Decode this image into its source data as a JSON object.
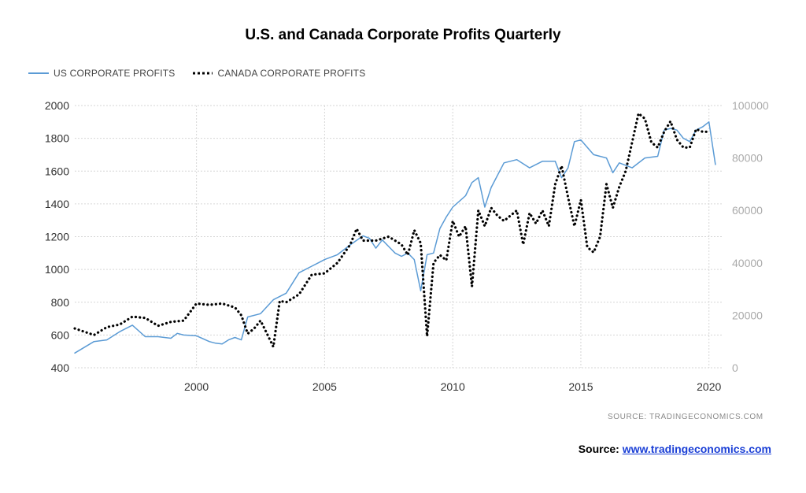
{
  "chart_data": {
    "type": "line",
    "title": "U.S. and Canada Corporate Profits Quarterly",
    "xlabel": "",
    "ylabel": "",
    "x_ticks": [
      "2000",
      "2005",
      "2010",
      "2015",
      "2020"
    ],
    "xlim": [
      1995.25,
      2020.5
    ],
    "y_left": {
      "lim": [
        400,
        2000
      ],
      "ticks": [
        "400",
        "600",
        "800",
        "1000",
        "1200",
        "1400",
        "1600",
        "1800",
        "2000"
      ]
    },
    "y_right": {
      "lim": [
        0,
        100000
      ],
      "ticks": [
        "0",
        "20000",
        "40000",
        "60000",
        "80000",
        "100000"
      ]
    },
    "grid": true,
    "legend_position": "top-left",
    "series": [
      {
        "name": "US CORPORATE PROFITS",
        "axis": "left",
        "color": "#5b9bd5",
        "style": "solid",
        "x": [
          1995.25,
          1996.0,
          1996.5,
          1997.0,
          1997.5,
          1998.0,
          1998.5,
          1999.0,
          1999.25,
          1999.5,
          2000.0,
          2000.5,
          2000.75,
          2001.0,
          2001.25,
          2001.5,
          2001.75,
          2002.0,
          2002.5,
          2003.0,
          2003.5,
          2004.0,
          2004.5,
          2004.75,
          2005.0,
          2005.5,
          2006.0,
          2006.5,
          2006.75,
          2007.0,
          2007.25,
          2007.5,
          2007.75,
          2008.0,
          2008.25,
          2008.5,
          2008.75,
          2009.0,
          2009.25,
          2009.5,
          2009.75,
          2010.0,
          2010.5,
          2010.75,
          2011.0,
          2011.25,
          2011.5,
          2012.0,
          2012.5,
          2013.0,
          2013.5,
          2014.0,
          2014.25,
          2014.5,
          2014.75,
          2015.0,
          2015.5,
          2016.0,
          2016.25,
          2016.5,
          2017.0,
          2017.5,
          2018.0,
          2018.25,
          2018.5,
          2018.75,
          2019.0,
          2019.25,
          2019.5,
          2019.75,
          2020.0,
          2020.25
        ],
        "y": [
          490,
          560,
          570,
          620,
          660,
          590,
          590,
          580,
          610,
          600,
          595,
          560,
          550,
          545,
          570,
          585,
          570,
          710,
          730,
          815,
          855,
          980,
          1020,
          1040,
          1060,
          1090,
          1150,
          1205,
          1190,
          1130,
          1180,
          1140,
          1100,
          1080,
          1100,
          1060,
          870,
          1090,
          1100,
          1250,
          1320,
          1380,
          1450,
          1530,
          1560,
          1380,
          1500,
          1650,
          1670,
          1620,
          1660,
          1660,
          1560,
          1620,
          1780,
          1790,
          1700,
          1680,
          1590,
          1650,
          1620,
          1680,
          1690,
          1850,
          1860,
          1850,
          1800,
          1780,
          1850,
          1870,
          1900,
          1640
        ]
      },
      {
        "name": "CANADA CORPORATE PROFITS",
        "axis": "right",
        "color": "#000000",
        "style": "dotted",
        "x": [
          1995.25,
          1996.0,
          1996.5,
          1997.0,
          1997.5,
          1998.0,
          1998.5,
          1999.0,
          1999.5,
          2000.0,
          2000.5,
          2001.0,
          2001.5,
          2001.75,
          2002.0,
          2002.25,
          2002.5,
          2002.75,
          2003.0,
          2003.25,
          2003.5,
          2004.0,
          2004.5,
          2005.0,
          2005.5,
          2006.0,
          2006.25,
          2006.5,
          2007.0,
          2007.5,
          2008.0,
          2008.25,
          2008.5,
          2008.75,
          2009.0,
          2009.25,
          2009.5,
          2009.75,
          2010.0,
          2010.25,
          2010.5,
          2010.75,
          2011.0,
          2011.25,
          2011.5,
          2011.75,
          2012.0,
          2012.5,
          2012.75,
          2013.0,
          2013.25,
          2013.5,
          2013.75,
          2014.0,
          2014.25,
          2014.5,
          2014.75,
          2015.0,
          2015.25,
          2015.5,
          2015.75,
          2016.0,
          2016.25,
          2016.5,
          2016.75,
          2017.0,
          2017.25,
          2017.5,
          2017.75,
          2018.0,
          2018.25,
          2018.5,
          2018.75,
          2019.0,
          2019.25,
          2019.5,
          2019.75,
          2020.0
        ],
        "y": [
          15000,
          12500,
          15500,
          16500,
          19500,
          19000,
          16000,
          17500,
          18000,
          24500,
          24000,
          24500,
          23000,
          20000,
          13000,
          15000,
          18000,
          13000,
          8000,
          25500,
          25000,
          28000,
          35500,
          36000,
          40000,
          47000,
          53000,
          48500,
          48500,
          50000,
          47000,
          43000,
          52500,
          47500,
          12000,
          40000,
          43000,
          41000,
          56000,
          50000,
          54000,
          31000,
          60000,
          54000,
          61000,
          58000,
          56000,
          60000,
          47000,
          59000,
          55000,
          60000,
          54000,
          70000,
          77000,
          65000,
          54000,
          64000,
          46000,
          44000,
          50000,
          70000,
          61000,
          69000,
          75000,
          86000,
          97000,
          95000,
          86000,
          84000,
          90000,
          94000,
          87000,
          84000,
          84000,
          91000,
          90000,
          90000
        ]
      }
    ]
  },
  "watermark": "SOURCE:   TRADINGECONOMICS.COM",
  "source": {
    "label": "Source:",
    "link_text": "www.tradingeconomics.com"
  }
}
